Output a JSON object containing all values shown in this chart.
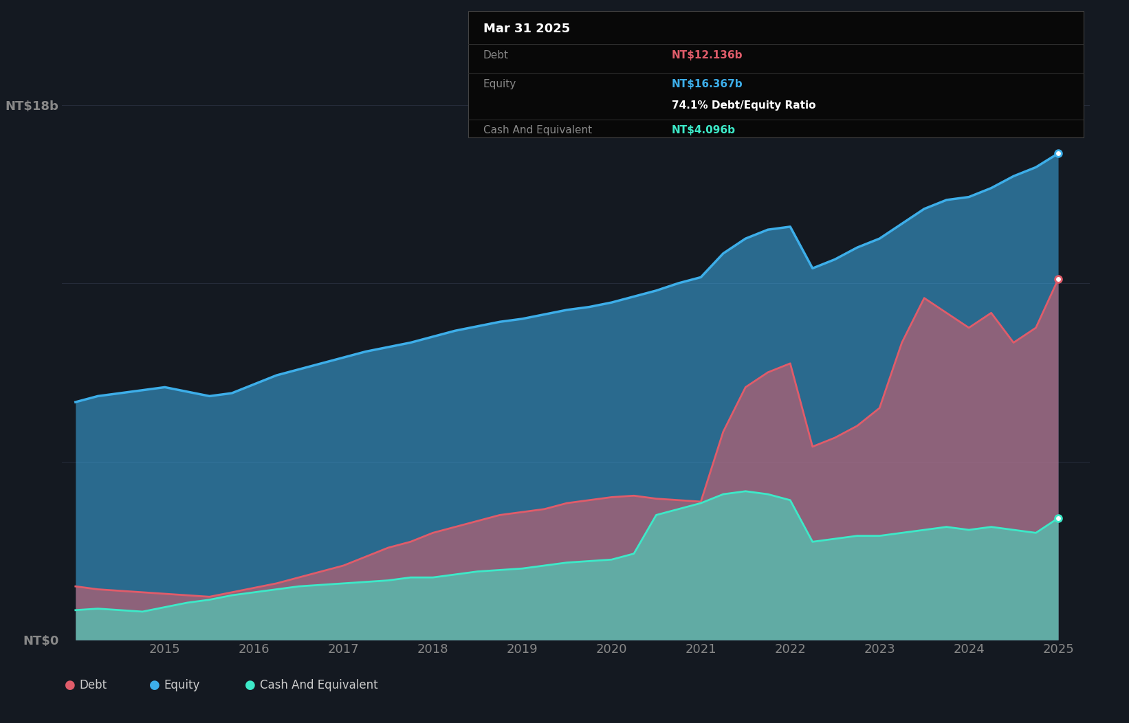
{
  "bg_color": "#141921",
  "plot_bg_color": "#141921",
  "grid_color": "#2a3040",
  "debt_color": "#e05c6a",
  "equity_color": "#3daee9",
  "cash_color": "#3de9c8",
  "tooltip_date": "Mar 31 2025",
  "tooltip_debt_label": "Debt",
  "tooltip_debt_value": "NT$12.136b",
  "tooltip_equity_label": "Equity",
  "tooltip_equity_value": "NT$16.367b",
  "tooltip_ratio": "74.1% Debt/Equity Ratio",
  "tooltip_cash_label": "Cash And Equivalent",
  "tooltip_cash_value": "NT$4.096b",
  "years": [
    2014.0,
    2014.25,
    2014.5,
    2014.75,
    2015.0,
    2015.25,
    2015.5,
    2015.75,
    2016.0,
    2016.25,
    2016.5,
    2016.75,
    2017.0,
    2017.25,
    2017.5,
    2017.75,
    2018.0,
    2018.25,
    2018.5,
    2018.75,
    2019.0,
    2019.25,
    2019.5,
    2019.75,
    2020.0,
    2020.25,
    2020.5,
    2020.75,
    2021.0,
    2021.25,
    2021.5,
    2021.75,
    2022.0,
    2022.25,
    2022.5,
    2022.75,
    2023.0,
    2023.25,
    2023.5,
    2023.75,
    2024.0,
    2024.25,
    2024.5,
    2024.75,
    2025.0
  ],
  "equity": [
    8.0,
    8.2,
    8.3,
    8.4,
    8.5,
    8.35,
    8.2,
    8.3,
    8.6,
    8.9,
    9.1,
    9.3,
    9.5,
    9.7,
    9.85,
    10.0,
    10.2,
    10.4,
    10.55,
    10.7,
    10.8,
    10.95,
    11.1,
    11.2,
    11.35,
    11.55,
    11.75,
    12.0,
    12.2,
    13.0,
    13.5,
    13.8,
    13.9,
    12.5,
    12.8,
    13.2,
    13.5,
    14.0,
    14.5,
    14.8,
    14.9,
    15.2,
    15.6,
    15.9,
    16.367
  ],
  "debt": [
    1.8,
    1.7,
    1.65,
    1.6,
    1.55,
    1.5,
    1.45,
    1.6,
    1.75,
    1.9,
    2.1,
    2.3,
    2.5,
    2.8,
    3.1,
    3.3,
    3.6,
    3.8,
    4.0,
    4.2,
    4.3,
    4.4,
    4.6,
    4.7,
    4.8,
    4.85,
    4.75,
    4.7,
    4.65,
    7.0,
    8.5,
    9.0,
    9.3,
    6.5,
    6.8,
    7.2,
    7.8,
    10.0,
    11.5,
    11.0,
    10.5,
    11.0,
    10.0,
    10.5,
    12.136
  ],
  "cash": [
    1.0,
    1.05,
    1.0,
    0.95,
    1.1,
    1.25,
    1.35,
    1.5,
    1.6,
    1.7,
    1.8,
    1.85,
    1.9,
    1.95,
    2.0,
    2.1,
    2.1,
    2.2,
    2.3,
    2.35,
    2.4,
    2.5,
    2.6,
    2.65,
    2.7,
    2.9,
    4.2,
    4.4,
    4.6,
    4.9,
    5.0,
    4.9,
    4.7,
    3.3,
    3.4,
    3.5,
    3.5,
    3.6,
    3.7,
    3.8,
    3.7,
    3.8,
    3.7,
    3.6,
    4.096
  ],
  "ymax": 18.0,
  "xlim_left": 2013.85,
  "xlim_right": 2025.35
}
